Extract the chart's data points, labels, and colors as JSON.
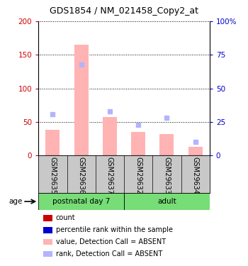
{
  "title": "GDS1854 / NM_021458_Copy2_at",
  "samples": [
    "GSM29635",
    "GSM29636",
    "GSM29637",
    "GSM29632",
    "GSM29633",
    "GSM29634"
  ],
  "bar_values_absent": [
    38,
    165,
    57,
    35,
    32,
    13
  ],
  "rank_values_absent_pct": [
    31,
    68,
    33,
    23,
    28,
    10
  ],
  "left_ylim": [
    0,
    200
  ],
  "left_ticks": [
    0,
    50,
    100,
    150,
    200
  ],
  "right_ticks": [
    0,
    25,
    50,
    75,
    100
  ],
  "right_tick_labels": [
    "0",
    "25",
    "50",
    "75",
    "100%"
  ],
  "bar_color_absent": "#ffb3b3",
  "rank_color_absent": "#b3b3ff",
  "left_tick_color": "#cc0000",
  "right_tick_color": "#0000cc",
  "legend_items": [
    {
      "label": "count",
      "color": "#cc0000"
    },
    {
      "label": "percentile rank within the sample",
      "color": "#0000cc"
    },
    {
      "label": "value, Detection Call = ABSENT",
      "color": "#ffb3b3"
    },
    {
      "label": "rank, Detection Call = ABSENT",
      "color": "#b3b3ff"
    }
  ],
  "group1_label": "postnatal day 7",
  "group2_label": "adult",
  "group_color": "#77dd77",
  "age_label": "age"
}
